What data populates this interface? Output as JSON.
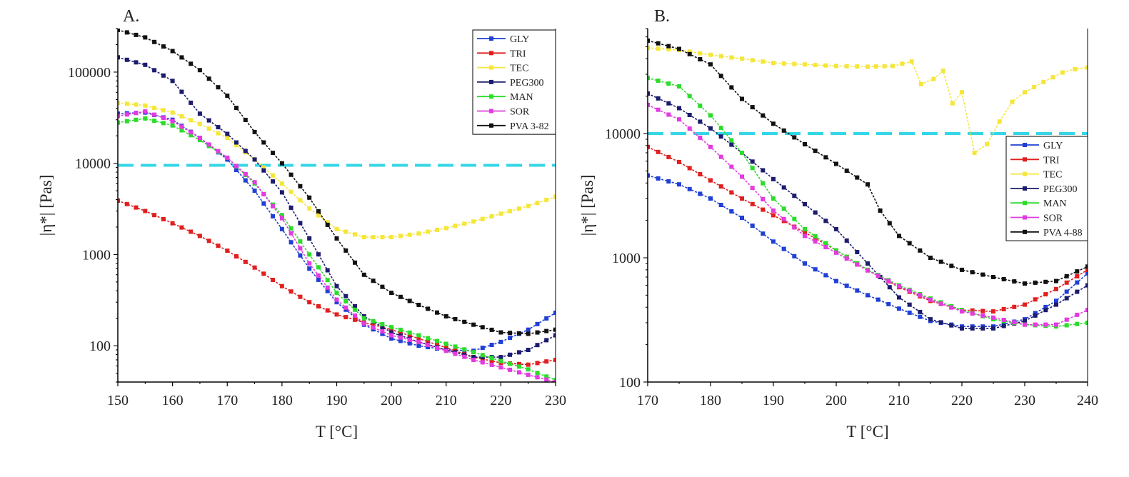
{
  "colors": {
    "GLY": "#1f3fd6",
    "TRI": "#e01f1f",
    "TEC": "#f5e63b",
    "PEG300": "#1c1c6e",
    "MAN": "#2bdc2b",
    "SOR": "#e23be0",
    "PVA": "#111111",
    "threshold": "#33d6e6"
  },
  "chart_data": [
    {
      "panel": "A.",
      "type": "line",
      "xlabel": "T [°C]",
      "ylabel": "|η*| [Pas]",
      "xlim": [
        150,
        230
      ],
      "ylim": [
        40,
        300000
      ],
      "yscale": "log",
      "xticks": [
        "150",
        "160",
        "170",
        "180",
        "190",
        "200",
        "210",
        "220",
        "230"
      ],
      "yticks": [
        "100",
        "1000",
        "10000",
        "100000"
      ],
      "threshold": 9500,
      "legend_position": "top-right",
      "series": [
        {
          "name": "GLY",
          "color_key": "GLY",
          "x": [
            150,
            155,
            160,
            165,
            170,
            175,
            180,
            185,
            190,
            195,
            200,
            205,
            210,
            215,
            220,
            225,
            230
          ],
          "y": [
            35000,
            36000,
            30000,
            19000,
            11000,
            5000,
            1900,
            700,
            300,
            170,
            120,
            100,
            90,
            88,
            110,
            150,
            230
          ]
        },
        {
          "name": "TRI",
          "color_key": "TRI",
          "x": [
            150,
            155,
            160,
            165,
            170,
            175,
            180,
            185,
            190,
            195,
            200,
            205,
            210,
            215,
            220,
            225,
            230
          ],
          "y": [
            3900,
            3000,
            2200,
            1600,
            1100,
            720,
            450,
            300,
            220,
            180,
            150,
            120,
            95,
            75,
            65,
            62,
            70
          ]
        },
        {
          "name": "TEC",
          "color_key": "TEC",
          "x": [
            150,
            155,
            160,
            165,
            170,
            175,
            180,
            185,
            190,
            195,
            200,
            205,
            210,
            215,
            220,
            225,
            230
          ],
          "y": [
            46000,
            43000,
            36000,
            27000,
            19000,
            11000,
            6000,
            3200,
            1900,
            1550,
            1550,
            1700,
            1950,
            2300,
            2800,
            3400,
            4300
          ]
        },
        {
          "name": "PEG300",
          "color_key": "PEG300",
          "x": [
            150,
            155,
            160,
            165,
            170,
            175,
            180,
            185,
            190,
            195,
            200,
            205,
            210,
            215,
            220,
            225,
            230
          ],
          "y": [
            145000,
            120000,
            80000,
            35000,
            21000,
            11000,
            4800,
            1500,
            450,
            210,
            140,
            110,
            90,
            75,
            75,
            90,
            130
          ]
        },
        {
          "name": "MAN",
          "color_key": "MAN",
          "x": [
            150,
            155,
            160,
            165,
            170,
            175,
            180,
            185,
            190,
            195,
            200,
            205,
            210,
            215,
            220,
            225,
            230
          ],
          "y": [
            28000,
            31000,
            26000,
            18000,
            11500,
            6000,
            2700,
            1000,
            380,
            200,
            160,
            130,
            105,
            85,
            68,
            55,
            42
          ]
        },
        {
          "name": "SOR",
          "color_key": "SOR",
          "x": [
            150,
            155,
            160,
            165,
            170,
            175,
            180,
            185,
            190,
            195,
            200,
            205,
            210,
            215,
            220,
            225,
            230
          ],
          "y": [
            33000,
            37000,
            29000,
            19000,
            11500,
            6200,
            2500,
            800,
            320,
            175,
            130,
            110,
            88,
            70,
            58,
            48,
            40
          ]
        },
        {
          "name": "PVA 3-82",
          "color_key": "PVA",
          "x": [
            150,
            155,
            160,
            165,
            170,
            175,
            180,
            185,
            190,
            195,
            200,
            205,
            210,
            215,
            220,
            225,
            230
          ],
          "y": [
            290000,
            240000,
            170000,
            105000,
            55000,
            22000,
            10000,
            4200,
            1500,
            600,
            380,
            280,
            210,
            170,
            140,
            135,
            150
          ]
        }
      ]
    },
    {
      "panel": "B.",
      "type": "line",
      "xlabel": "T [°C]",
      "ylabel": "|η*| [Pas]",
      "xlim": [
        170,
        240
      ],
      "ylim": [
        100,
        70000
      ],
      "yscale": "log",
      "xticks": [
        "170",
        "180",
        "190",
        "200",
        "210",
        "220",
        "230",
        "240"
      ],
      "yticks": [
        "100",
        "1000",
        "10000"
      ],
      "threshold": 10000,
      "legend_position": "center-right",
      "series": [
        {
          "name": "GLY",
          "color_key": "GLY",
          "x": [
            170,
            175,
            180,
            185,
            190,
            195,
            200,
            205,
            210,
            215,
            220,
            225,
            230,
            235,
            240
          ],
          "y": [
            4600,
            3900,
            3000,
            2100,
            1350,
            900,
            650,
            500,
            390,
            310,
            280,
            280,
            320,
            450,
            750
          ]
        },
        {
          "name": "TRI",
          "color_key": "TRI",
          "x": [
            170,
            175,
            180,
            185,
            190,
            195,
            200,
            205,
            210,
            215,
            220,
            225,
            230,
            235,
            240
          ],
          "y": [
            7800,
            5900,
            4200,
            3000,
            2200,
            1600,
            1150,
            800,
            580,
            450,
            380,
            370,
            420,
            560,
            800
          ]
        },
        {
          "name": "TEC",
          "color_key": "TEC",
          "x": [
            170,
            175,
            180,
            185,
            190,
            195,
            200,
            205,
            209,
            212,
            213.5,
            215.5,
            217,
            218.5,
            220,
            222,
            224,
            226,
            228,
            230,
            233,
            236,
            238,
            240
          ],
          "y": [
            49000,
            47000,
            43000,
            40000,
            37000,
            36000,
            35000,
            34500,
            35000,
            38000,
            25000,
            27500,
            32000,
            17500,
            21500,
            7000,
            8200,
            12500,
            18000,
            21500,
            26000,
            31000,
            33000,
            34000
          ]
        },
        {
          "name": "PEG300",
          "color_key": "PEG300",
          "x": [
            170,
            175,
            180,
            185,
            190,
            195,
            200,
            205,
            207,
            210,
            215,
            220,
            225,
            230,
            235,
            240
          ],
          "y": [
            21000,
            16000,
            11000,
            7000,
            4300,
            2700,
            1700,
            900,
            700,
            480,
            320,
            270,
            270,
            310,
            420,
            600
          ]
        },
        {
          "name": "MAN",
          "color_key": "MAN",
          "x": [
            170,
            175,
            180,
            185,
            190,
            195,
            200,
            205,
            210,
            215,
            220,
            225,
            230,
            235,
            240
          ],
          "y": [
            28000,
            24000,
            14000,
            7000,
            3000,
            1700,
            1150,
            800,
            600,
            470,
            380,
            320,
            290,
            280,
            300
          ]
        },
        {
          "name": "SOR",
          "color_key": "SOR",
          "x": [
            170,
            175,
            180,
            185,
            190,
            195,
            200,
            205,
            210,
            215,
            220,
            225,
            230,
            235,
            240
          ],
          "y": [
            17000,
            13000,
            7800,
            4500,
            2400,
            1500,
            1100,
            790,
            590,
            460,
            370,
            330,
            290,
            290,
            380
          ]
        },
        {
          "name": "PVA 4-88",
          "color_key": "PVA",
          "x": [
            170,
            175,
            180,
            185,
            190,
            195,
            200,
            205,
            207,
            210,
            215,
            220,
            225,
            230,
            235,
            240
          ],
          "y": [
            56000,
            48000,
            36000,
            19000,
            12000,
            8200,
            5700,
            3900,
            2400,
            1500,
            1000,
            800,
            700,
            620,
            650,
            850
          ]
        }
      ]
    }
  ]
}
